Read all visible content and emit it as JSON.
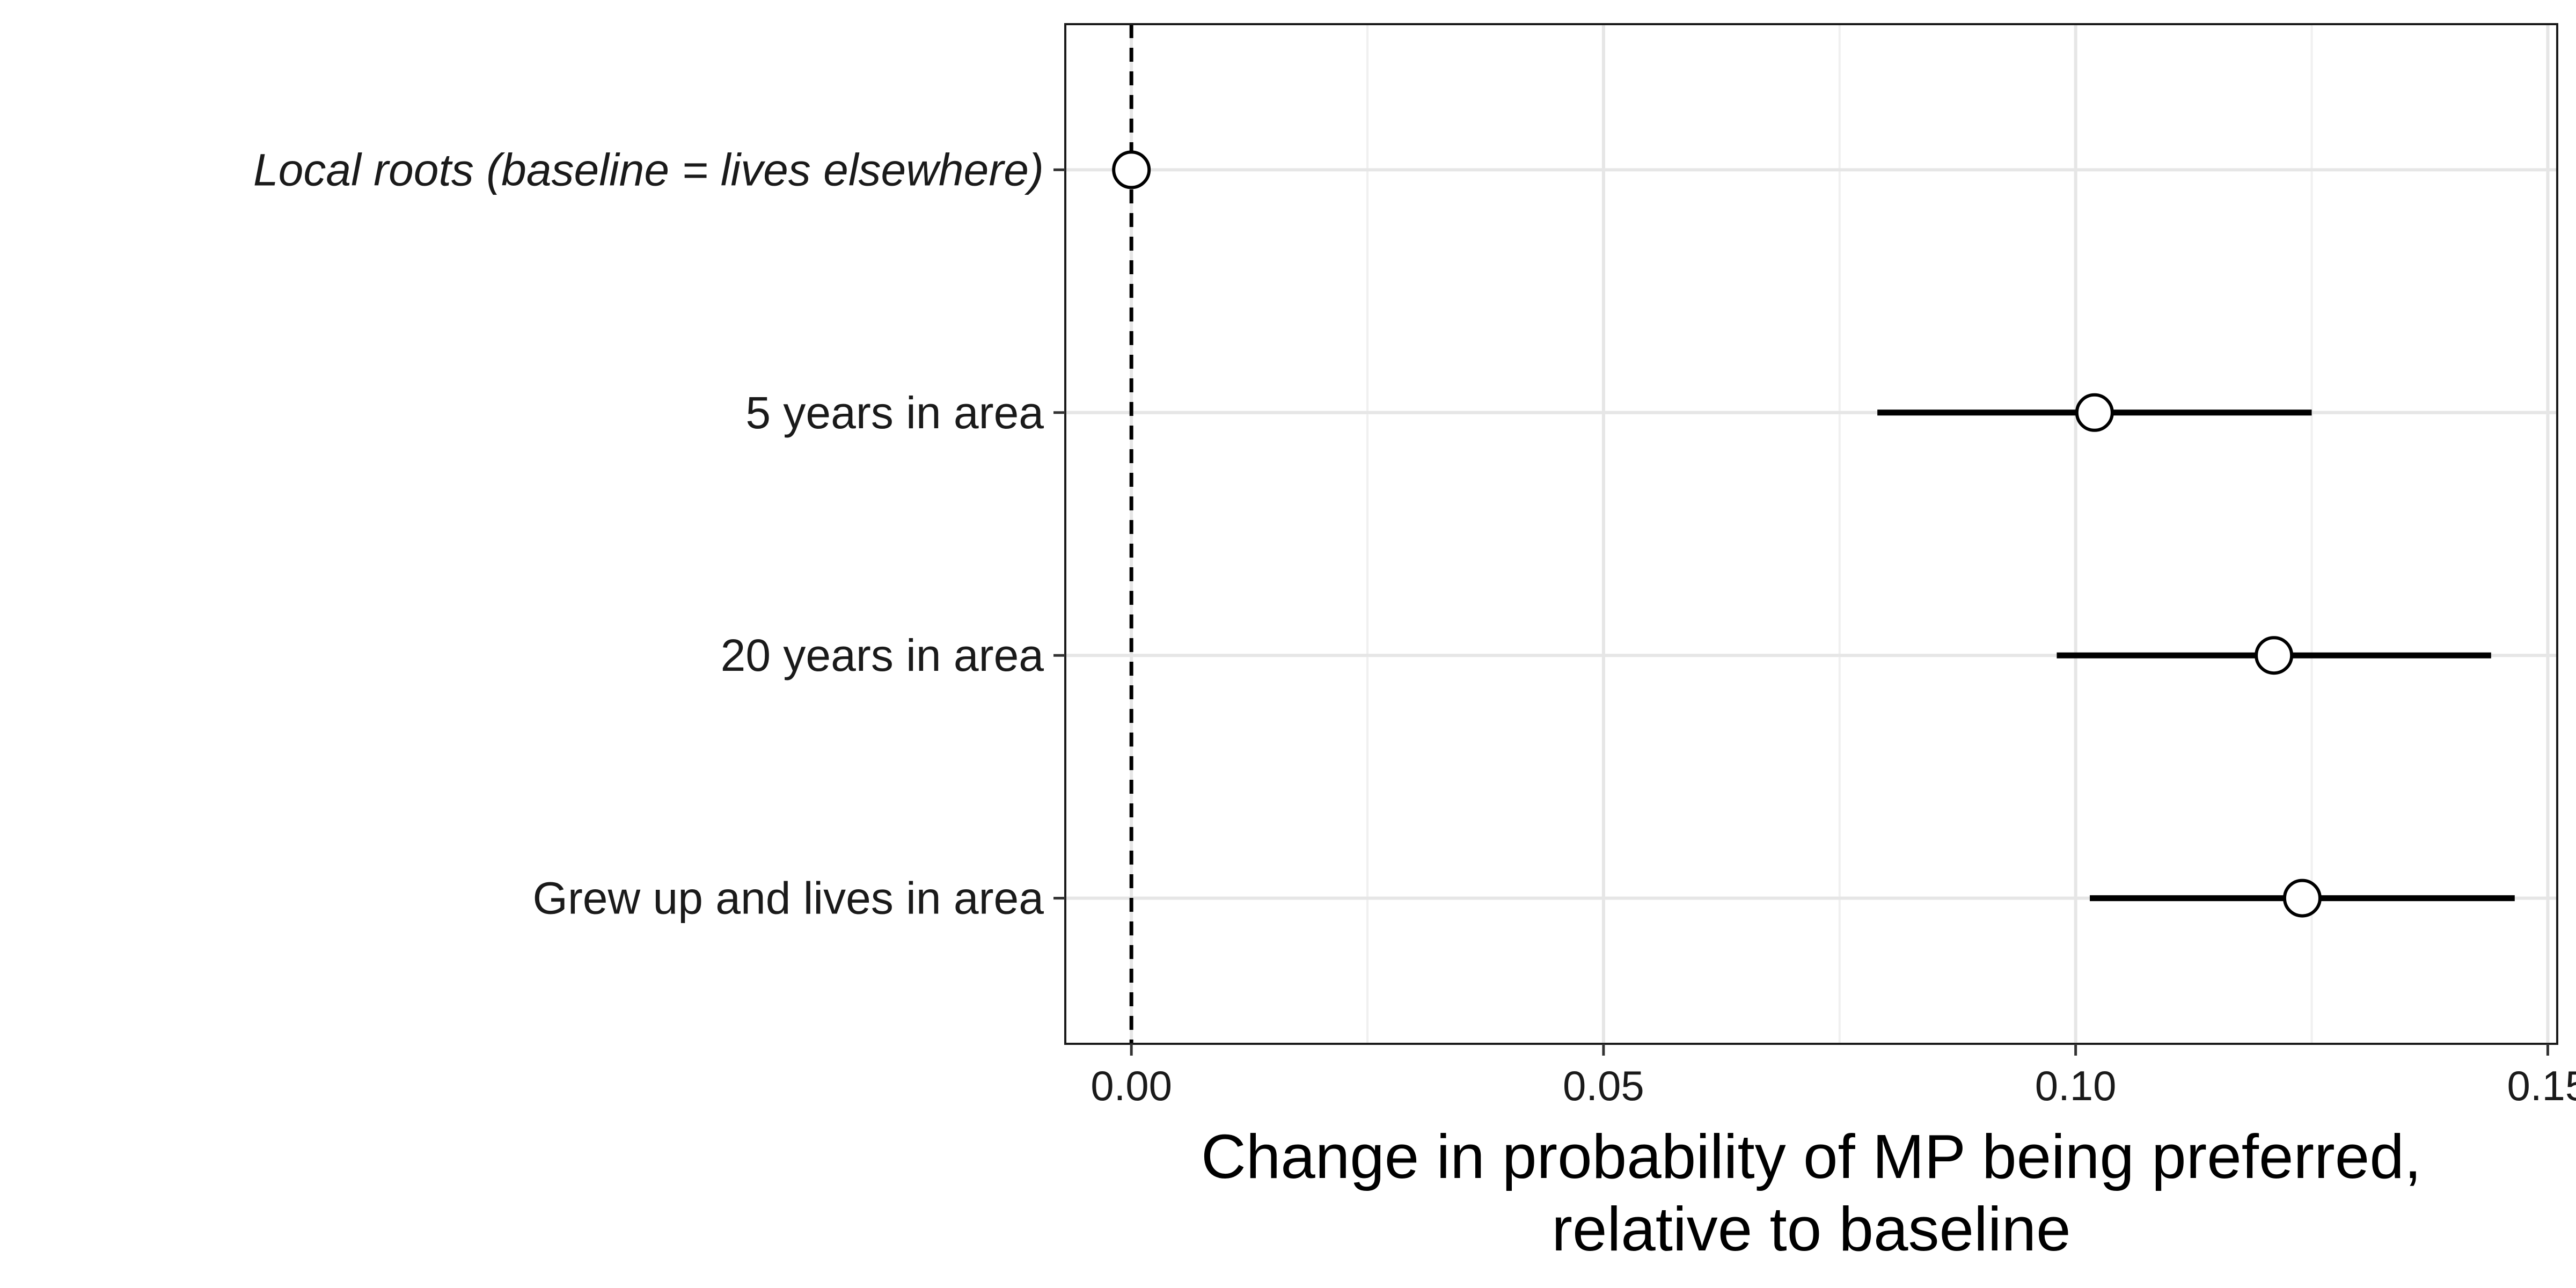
{
  "chart_data": {
    "type": "scatter",
    "subtype": "coefficient-plot-with-error-bars",
    "title": "",
    "xlabel_lines": [
      "Change in probability of MP being preferred,",
      "relative to baseline"
    ],
    "ylabel": "",
    "xlim": [
      -0.007,
      0.151
    ],
    "xticks": [
      0.0,
      0.05,
      0.1,
      0.15
    ],
    "xtick_labels": [
      "0.00",
      "0.05",
      "0.10",
      "0.15"
    ],
    "reference_line": {
      "x": 0,
      "style": "dashed"
    },
    "grid": true,
    "legend": "none",
    "colors": {
      "point_fill": "#ffffff",
      "point_stroke": "#000000",
      "errorbar": "#000000",
      "grid": "#e6e6e6",
      "frame": "#1a1a1a"
    },
    "points": [
      {
        "label": "Local roots (baseline = lives elsewhere)",
        "italic": true,
        "estimate": 0.0,
        "lower": null,
        "upper": null
      },
      {
        "label": "5 years in area",
        "italic": false,
        "estimate": 0.102,
        "lower": 0.079,
        "upper": 0.125
      },
      {
        "label": "20 years in area",
        "italic": false,
        "estimate": 0.121,
        "lower": 0.098,
        "upper": 0.144
      },
      {
        "label": "Grew up and lives in area",
        "italic": false,
        "estimate": 0.124,
        "lower": 0.1015,
        "upper": 0.1465
      }
    ]
  }
}
